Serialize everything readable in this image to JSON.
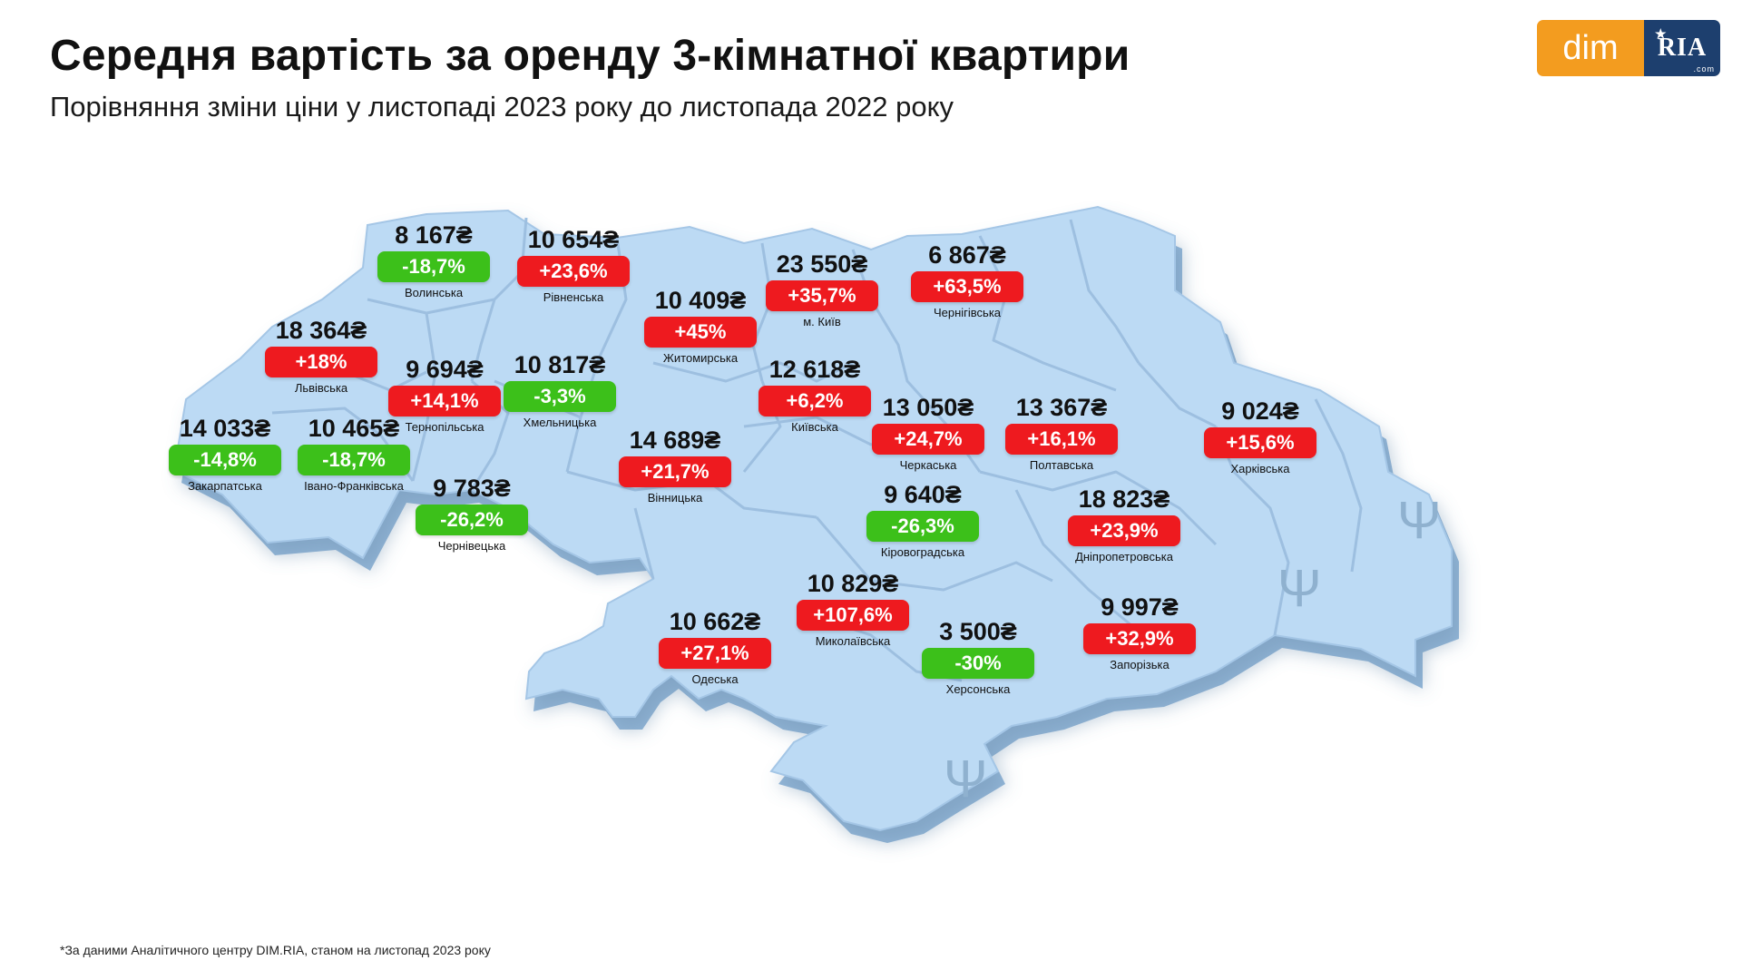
{
  "title": "Середня вартість за оренду 3-кімнатної квартири",
  "subtitle": "Порівняння зміни ціни у листопаді 2023 року до листопада 2022 року",
  "logo": {
    "left": "dim",
    "right": "RIA",
    "right_small": ".com"
  },
  "footnote": "*За даними Аналітичного центру DIM.RIA, станом на листопад 2023 року",
  "colors": {
    "increase": "#ee1a1f",
    "decrease": "#3cc01a",
    "map_fill": "#bcdaf4",
    "map_edge": "#8fb4d6"
  },
  "regions": [
    {
      "name": "Волинська",
      "price": "8 167₴",
      "change": "-18,7%",
      "direction": "down"
    },
    {
      "name": "Рівненська",
      "price": "10 654₴",
      "change": "+23,6%",
      "direction": "up"
    },
    {
      "name": "Житомирська",
      "price": "10 409₴",
      "change": "+45%",
      "direction": "up"
    },
    {
      "name": "м. Київ",
      "price": "23 550₴",
      "change": "+35,7%",
      "direction": "up"
    },
    {
      "name": "Чернігівська",
      "price": "6 867₴",
      "change": "+63,5%",
      "direction": "up"
    },
    {
      "name": "Львівська",
      "price": "18 364₴",
      "change": "+18%",
      "direction": "up"
    },
    {
      "name": "Тернопільська",
      "price": "9 694₴",
      "change": "+14,1%",
      "direction": "up"
    },
    {
      "name": "Хмельницька",
      "price": "10 817₴",
      "change": "-3,3%",
      "direction": "down"
    },
    {
      "name": "Київська",
      "price": "12 618₴",
      "change": "+6,2%",
      "direction": "up"
    },
    {
      "name": "Закарпатська",
      "price": "14 033₴",
      "change": "-14,8%",
      "direction": "down"
    },
    {
      "name": "Івано-Франківська",
      "price": "10 465₴",
      "change": "-18,7%",
      "direction": "down"
    },
    {
      "name": "Вінницька",
      "price": "14 689₴",
      "change": "+21,7%",
      "direction": "up"
    },
    {
      "name": "Черкаська",
      "price": "13 050₴",
      "change": "+24,7%",
      "direction": "up"
    },
    {
      "name": "Полтавська",
      "price": "13 367₴",
      "change": "+16,1%",
      "direction": "up"
    },
    {
      "name": "Харківська",
      "price": "9 024₴",
      "change": "+15,6%",
      "direction": "up"
    },
    {
      "name": "Чернівецька",
      "price": "9 783₴",
      "change": "-26,2%",
      "direction": "down"
    },
    {
      "name": "Кіровоградська",
      "price": "9 640₴",
      "change": "-26,3%",
      "direction": "down"
    },
    {
      "name": "Дніпропетровська",
      "price": "18 823₴",
      "change": "+23,9%",
      "direction": "up"
    },
    {
      "name": "Миколаївська",
      "price": "10 829₴",
      "change": "+107,6%",
      "direction": "up"
    },
    {
      "name": "Одеська",
      "price": "10 662₴",
      "change": "+27,1%",
      "direction": "up"
    },
    {
      "name": "Херсонська",
      "price": "3 500₴",
      "change": "-30%",
      "direction": "down"
    },
    {
      "name": "Запорізька",
      "price": "9 997₴",
      "change": "+32,9%",
      "direction": "up"
    }
  ],
  "occupied_icon": "trident-icon"
}
